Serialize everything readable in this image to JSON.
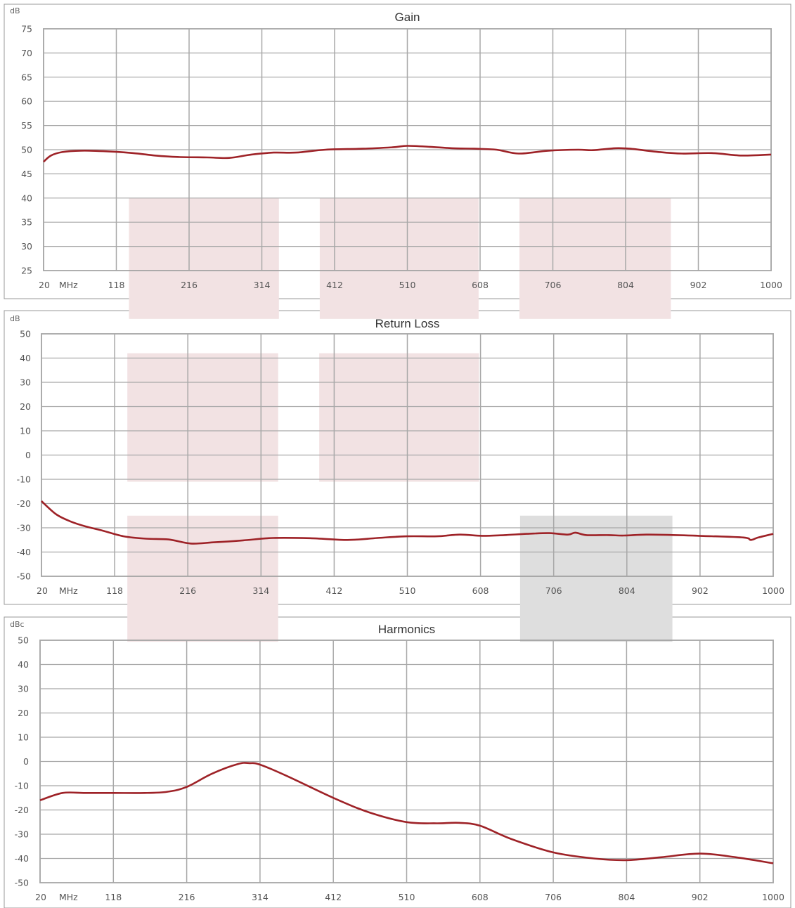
{
  "colors": {
    "line": "#9e2227",
    "grid": "#a8a8a8",
    "shade_pink": "#f2e2e3",
    "shade_gray": "#dedede",
    "frame": "#999999"
  },
  "charts": [
    {
      "id": "gain",
      "title": "Gain",
      "unit": "dB",
      "freq_unit": "MHz",
      "x_ticks": [
        "20",
        "118",
        "216",
        "314",
        "412",
        "510",
        "608",
        "706",
        "804",
        "902",
        "1000"
      ],
      "y_ticks": [
        "75",
        "70",
        "65",
        "60",
        "55",
        "50",
        "45",
        "40",
        "35",
        "30",
        "25"
      ]
    },
    {
      "id": "return-loss",
      "title": "Return Loss",
      "unit": "dB",
      "freq_unit": "MHz",
      "x_ticks": [
        "20",
        "118",
        "216",
        "314",
        "412",
        "510",
        "608",
        "706",
        "804",
        "902",
        "1000"
      ],
      "y_ticks": [
        "50",
        "40",
        "30",
        "20",
        "10",
        "0",
        "-10",
        "-20",
        "-30",
        "-40",
        "-50"
      ]
    },
    {
      "id": "harmonics",
      "title": "Harmonics",
      "unit": "dBc",
      "freq_unit": "MHz",
      "x_ticks": [
        "20",
        "118",
        "216",
        "314",
        "412",
        "510",
        "608",
        "706",
        "804",
        "902",
        "1000"
      ],
      "y_ticks": [
        "50",
        "40",
        "30",
        "20",
        "10",
        "0",
        "-10",
        "-20",
        "-30",
        "-40",
        "-50"
      ]
    }
  ],
  "chart_data": [
    {
      "type": "line",
      "title": "Gain",
      "ylabel": "dB",
      "xlabel": "MHz",
      "xlim": [
        20,
        1000
      ],
      "ylim": [
        25,
        75
      ],
      "grid": true,
      "x": [
        20,
        30,
        45,
        70,
        100,
        140,
        170,
        200,
        240,
        270,
        300,
        330,
        360,
        400,
        450,
        490,
        510,
        540,
        570,
        600,
        630,
        660,
        700,
        740,
        760,
        790,
        810,
        850,
        880,
        920,
        960,
        1000
      ],
      "values": [
        47.5,
        48.8,
        49.5,
        49.8,
        49.7,
        49.3,
        48.8,
        48.5,
        48.4,
        48.3,
        49.0,
        49.4,
        49.4,
        50.0,
        50.2,
        50.5,
        50.8,
        50.6,
        50.3,
        50.2,
        50.0,
        49.2,
        49.8,
        50.0,
        49.9,
        50.3,
        50.2,
        49.5,
        49.2,
        49.3,
        48.8,
        49.0
      ],
      "shaded_regions": [
        {
          "x": [
            135,
            337
          ],
          "y": [
            40,
            15
          ],
          "color": "pink"
        },
        {
          "x": [
            392,
            606
          ],
          "y": [
            40,
            15
          ],
          "color": "pink"
        },
        {
          "x": [
            661,
            865
          ],
          "y": [
            40,
            15
          ],
          "color": "pink"
        }
      ]
    },
    {
      "type": "line",
      "title": "Return Loss",
      "ylabel": "dB",
      "xlabel": "MHz",
      "xlim": [
        20,
        1000
      ],
      "ylim": [
        -50,
        50
      ],
      "grid": true,
      "x": [
        20,
        40,
        60,
        80,
        100,
        130,
        160,
        190,
        220,
        250,
        290,
        330,
        380,
        430,
        470,
        510,
        550,
        580,
        610,
        640,
        670,
        700,
        725,
        735,
        750,
        780,
        800,
        830,
        870,
        900,
        960,
        970,
        980,
        1000
      ],
      "values": [
        -19,
        -24.5,
        -27.5,
        -29.5,
        -31,
        -33.5,
        -34.5,
        -34.8,
        -36.5,
        -36,
        -35.2,
        -34.2,
        -34.3,
        -35,
        -34.2,
        -33.5,
        -33.5,
        -32.8,
        -33.3,
        -33,
        -32.5,
        -32.2,
        -32.8,
        -32,
        -33,
        -33,
        -33.2,
        -32.8,
        -33,
        -33.3,
        -34,
        -35,
        -34,
        -32.5
      ],
      "shaded_regions": [
        {
          "x": [
            135,
            337
          ],
          "y": [
            42,
            -11
          ],
          "color": "pink"
        },
        {
          "x": [
            392,
            606
          ],
          "y": [
            42,
            -11
          ],
          "color": "pink"
        },
        {
          "x": [
            135,
            337
          ],
          "y": [
            -25,
            -77
          ],
          "color": "pink"
        },
        {
          "x": [
            661,
            865
          ],
          "y": [
            -25,
            -77
          ],
          "color": "gray"
        }
      ]
    },
    {
      "type": "line",
      "title": "Harmonics",
      "ylabel": "dBc",
      "xlabel": "MHz",
      "xlim": [
        20,
        1000
      ],
      "ylim": [
        -50,
        50
      ],
      "grid": true,
      "x": [
        20,
        50,
        80,
        118,
        160,
        190,
        216,
        250,
        285,
        300,
        314,
        350,
        412,
        460,
        510,
        550,
        580,
        608,
        650,
        706,
        760,
        804,
        850,
        902,
        950,
        1000
      ],
      "values": [
        -16,
        -13,
        -13,
        -13,
        -13,
        -12.5,
        -10.5,
        -5,
        -1,
        -0.7,
        -1.3,
        -6,
        -15,
        -21,
        -25,
        -25.5,
        -25.3,
        -26.5,
        -32,
        -37.5,
        -40,
        -40.7,
        -39.5,
        -38,
        -39.5,
        -42
      ],
      "shaded_regions": []
    }
  ]
}
